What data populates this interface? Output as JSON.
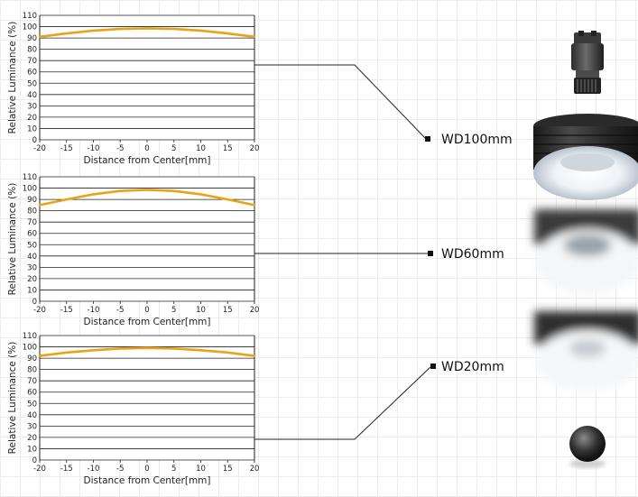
{
  "chart_data": [
    {
      "type": "line",
      "xlabel": "Distance from Center[mm]",
      "ylabel": "Relative Luminance (%)",
      "xlim": [
        -20,
        20
      ],
      "ylim": [
        0,
        110
      ],
      "xticks": [
        -20,
        -15,
        -10,
        -5,
        0,
        5,
        10,
        15,
        20
      ],
      "yticks": [
        0,
        10,
        20,
        30,
        40,
        50,
        60,
        70,
        80,
        90,
        100,
        110
      ],
      "grid": "horizontal",
      "series": [
        {
          "color": "#e8a317",
          "x": [
            -20,
            -15,
            -10,
            -5,
            0,
            5,
            10,
            15,
            20
          ],
          "y": [
            91,
            94,
            96.5,
            98,
            98.5,
            98,
            96.5,
            94,
            91
          ]
        }
      ]
    },
    {
      "type": "line",
      "xlabel": "Distance from Center[mm]",
      "ylabel": "Relative Luminance (%)",
      "xlim": [
        -20,
        20
      ],
      "ylim": [
        0,
        110
      ],
      "xticks": [
        -20,
        -15,
        -10,
        -5,
        0,
        5,
        10,
        15,
        20
      ],
      "yticks": [
        0,
        10,
        20,
        30,
        40,
        50,
        60,
        70,
        80,
        90,
        100,
        110
      ],
      "grid": "horizontal",
      "series": [
        {
          "color": "#e8a317",
          "x": [
            -20,
            -15,
            -10,
            -5,
            0,
            5,
            10,
            15,
            20
          ],
          "y": [
            85,
            90,
            94.5,
            97.5,
            98.5,
            97.5,
            94.5,
            90,
            85
          ]
        }
      ]
    },
    {
      "type": "line",
      "xlabel": "Distance from Center[mm]",
      "ylabel": "Relative Luminance (%)",
      "xlim": [
        -20,
        20
      ],
      "ylim": [
        0,
        110
      ],
      "xticks": [
        -20,
        -15,
        -10,
        -5,
        0,
        5,
        10,
        15,
        20
      ],
      "yticks": [
        0,
        10,
        20,
        30,
        40,
        50,
        60,
        70,
        80,
        90,
        100,
        110
      ],
      "grid": "horizontal",
      "series": [
        {
          "color": "#e8a317",
          "x": [
            -20,
            -15,
            -10,
            -5,
            0,
            5,
            10,
            15,
            20
          ],
          "y": [
            92,
            95,
            97,
            98.5,
            99,
            98.5,
            97,
            95,
            92
          ]
        }
      ]
    }
  ],
  "callouts": [
    "WD100mm",
    "WD60mm",
    "WD20mm"
  ],
  "illustration": {
    "parts": [
      "camera-icon",
      "ring-light-icon",
      "ring-light-blurred-icon",
      "ring-light-blurred-icon",
      "ball-icon"
    ]
  }
}
